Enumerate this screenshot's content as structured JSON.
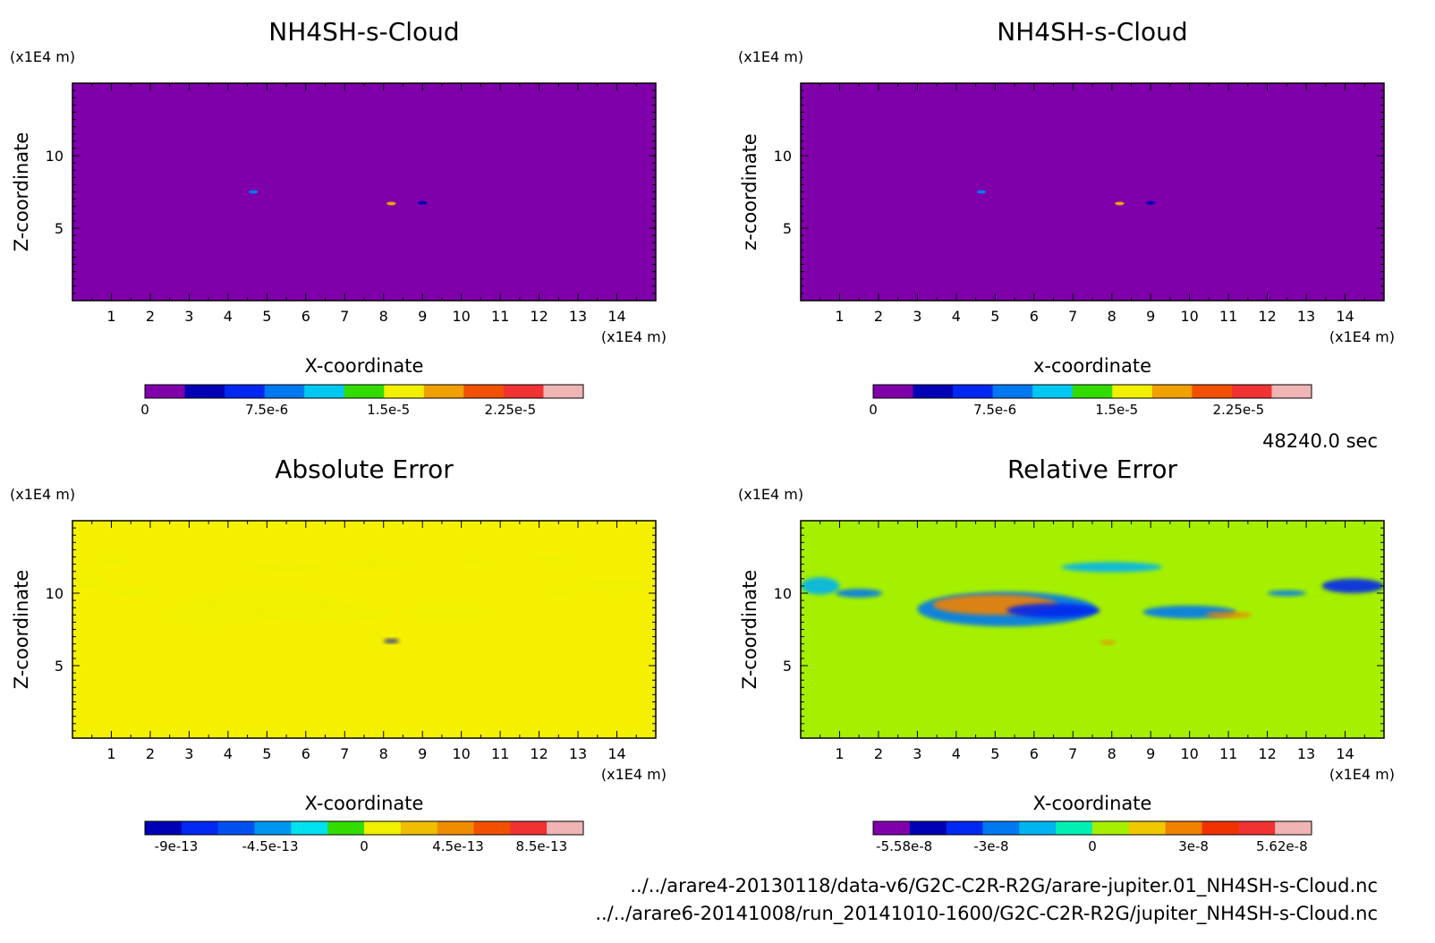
{
  "time_label": "48240.0 sec",
  "file_paths": [
    "../../arare4-20130118/data-v6/G2C-C2R-R2G/arare-jupiter.01_NH4SH-s-Cloud.nc",
    "../../arare6-20141008/run_20141010-1600/G2C-C2R-R2G/jupiter_NH4SH-s-Cloud.nc"
  ],
  "chart_data": [
    {
      "type": "heatmap",
      "title": "NH4SH-s-Cloud",
      "xlabel": "X-coordinate",
      "ylabel": "Z-coordinate",
      "x_unit": "(x1E4 m)",
      "y_unit": "(x1E4 m)",
      "xlim": [
        0,
        15
      ],
      "ylim": [
        0,
        15
      ],
      "x_ticks": [
        1,
        2,
        3,
        4,
        5,
        6,
        7,
        8,
        9,
        10,
        11,
        12,
        13,
        14
      ],
      "y_ticks": [
        5,
        10
      ],
      "background": "#7f00aa",
      "colorbar": {
        "ticks": [
          "0",
          "7.5e-6",
          "1.5e-5",
          "2.25e-5"
        ],
        "tick_values": [
          0,
          7.5e-06,
          1.5e-05,
          2.25e-05
        ],
        "range": [
          0,
          2.7e-05
        ],
        "colors": [
          "#7f00aa",
          "#0000b4",
          "#0028f0",
          "#0078f0",
          "#00c8f0",
          "#32dc00",
          "#f0f000",
          "#f0a000",
          "#f05000",
          "#f03232",
          "#f0b4b4"
        ]
      },
      "features": [
        {
          "x": 4.65,
          "z": 7.5,
          "value": 7.5e-06
        },
        {
          "x": 8.2,
          "z": 6.7,
          "value": 1.8e-05
        },
        {
          "x": 9.0,
          "z": 6.75,
          "value": 3e-06
        }
      ]
    },
    {
      "type": "heatmap",
      "title": "NH4SH-s-Cloud",
      "xlabel": "x-coordinate",
      "ylabel": "z-coordinate",
      "x_unit": "(x1E4 m)",
      "y_unit": "(x1E4 m)",
      "xlim": [
        0,
        15
      ],
      "ylim": [
        0,
        15
      ],
      "x_ticks": [
        1,
        2,
        3,
        4,
        5,
        6,
        7,
        8,
        9,
        10,
        11,
        12,
        13,
        14
      ],
      "y_ticks": [
        5,
        10
      ],
      "background": "#7f00aa",
      "colorbar": {
        "ticks": [
          "0",
          "7.5e-6",
          "1.5e-5",
          "2.25e-5"
        ],
        "tick_values": [
          0,
          7.5e-06,
          1.5e-05,
          2.25e-05
        ],
        "range": [
          0,
          2.7e-05
        ],
        "colors": [
          "#7f00aa",
          "#0000b4",
          "#0028f0",
          "#0078f0",
          "#00c8f0",
          "#32dc00",
          "#f0f000",
          "#f0a000",
          "#f05000",
          "#f03232",
          "#f0b4b4"
        ]
      },
      "features": [
        {
          "x": 4.65,
          "z": 7.5,
          "value": 7.5e-06
        },
        {
          "x": 8.2,
          "z": 6.7,
          "value": 1.8e-05
        },
        {
          "x": 9.0,
          "z": 6.75,
          "value": 3e-06
        }
      ]
    },
    {
      "type": "heatmap",
      "title": "Absolute Error",
      "xlabel": "X-coordinate",
      "ylabel": "Z-coordinate",
      "x_unit": "(x1E4 m)",
      "y_unit": "(x1E4 m)",
      "xlim": [
        0,
        15
      ],
      "ylim": [
        0,
        15
      ],
      "x_ticks": [
        1,
        2,
        3,
        4,
        5,
        6,
        7,
        8,
        9,
        10,
        11,
        12,
        13,
        14
      ],
      "y_ticks": [
        5,
        10
      ],
      "background": "#f5f000",
      "colorbar": {
        "ticks": [
          "-9e-13",
          "-4.5e-13",
          "0",
          "4.5e-13",
          "8.5e-13"
        ],
        "tick_values": [
          -9e-13,
          -4.5e-13,
          0,
          4.5e-13,
          8.5e-13
        ],
        "range": [
          -1.05e-12,
          1.05e-12
        ],
        "colors": [
          "#0000b4",
          "#0028f0",
          "#0050f0",
          "#0096f0",
          "#00e1f0",
          "#32dc00",
          "#f0f000",
          "#f0be00",
          "#f08c00",
          "#f05000",
          "#f03232",
          "#f0b4b4"
        ]
      },
      "features": [
        {
          "x": 1.1,
          "z": 12.2,
          "value": 1e-13,
          "rx": 0.35,
          "rz": 0.25
        },
        {
          "x": 0.4,
          "z": 10.8,
          "value": 1e-13,
          "rx": 0.4,
          "rz": 0.5
        },
        {
          "x": 1.6,
          "z": 10.0,
          "value": 1e-13,
          "rx": 0.6,
          "rz": 0.3
        },
        {
          "x": 3.6,
          "z": 8.4,
          "value": 1e-13,
          "rx": 1.2,
          "rz": 0.6
        },
        {
          "x": 5.0,
          "z": 9.2,
          "value": 1e-13,
          "rx": 2.0,
          "rz": 1.0
        },
        {
          "x": 6.5,
          "z": 8.6,
          "value": 1e-13,
          "rx": 1.8,
          "rz": 0.6
        },
        {
          "x": 5.5,
          "z": 11.8,
          "value": 1e-13,
          "rx": 1.0,
          "rz": 0.3
        },
        {
          "x": 7.8,
          "z": 12.0,
          "value": 1e-13,
          "rx": 1.0,
          "rz": 0.3
        },
        {
          "x": 9.7,
          "z": 8.7,
          "value": 1e-13,
          "rx": 1.0,
          "rz": 0.45
        },
        {
          "x": 10.3,
          "z": 12.2,
          "value": 1e-13,
          "rx": 0.35,
          "rz": 0.2
        },
        {
          "x": 12.3,
          "z": 12.4,
          "value": 1e-13,
          "rx": 0.5,
          "rz": 0.25
        },
        {
          "x": 12.6,
          "z": 10.0,
          "value": 1e-13,
          "rx": 0.5,
          "rz": 0.2
        },
        {
          "x": 14.0,
          "z": 10.5,
          "value": 1e-13,
          "rx": 0.9,
          "rz": 0.45
        },
        {
          "x": 8.2,
          "z": 6.7,
          "value": -9e-13,
          "rx": 0.2,
          "rz": 0.12
        }
      ]
    },
    {
      "type": "heatmap",
      "title": "Relative Error",
      "xlabel": "X-coordinate",
      "ylabel": "Z-coordinate",
      "x_unit": "(x1E4 m)",
      "y_unit": "(x1E4 m)",
      "xlim": [
        0,
        15
      ],
      "ylim": [
        0,
        15
      ],
      "x_ticks": [
        1,
        2,
        3,
        4,
        5,
        6,
        7,
        8,
        9,
        10,
        11,
        12,
        13,
        14
      ],
      "y_ticks": [
        5,
        10
      ],
      "background": "#a5f000",
      "colorbar": {
        "ticks": [
          "-5.58e-8",
          "-3e-8",
          "0",
          "3e-8",
          "5.62e-8"
        ],
        "tick_values": [
          -5.58e-08,
          -3e-08,
          0,
          3e-08,
          5.62e-08
        ],
        "range": [
          -6.5e-08,
          6.5e-08
        ],
        "colors": [
          "#7f00aa",
          "#0000b4",
          "#0028f0",
          "#0078f0",
          "#00b4f0",
          "#00f0b4",
          "#a5f000",
          "#f0c800",
          "#f08200",
          "#f03200",
          "#f03232",
          "#f0b4b4"
        ]
      },
      "features": [
        {
          "x": 0.5,
          "z": 10.5,
          "value": -2e-08,
          "rx": 0.5,
          "rz": 0.6
        },
        {
          "x": 1.5,
          "z": 10.0,
          "value": -3e-08,
          "rx": 0.6,
          "rz": 0.3
        },
        {
          "x": 5.3,
          "z": 8.9,
          "value": -3e-08,
          "rx": 2.3,
          "rz": 1.2
        },
        {
          "x": 5.0,
          "z": 9.2,
          "value": 3e-08,
          "rx": 1.6,
          "rz": 0.7
        },
        {
          "x": 6.5,
          "z": 8.8,
          "value": -4e-08,
          "rx": 1.2,
          "rz": 0.5
        },
        {
          "x": 8.0,
          "z": 11.8,
          "value": -2e-08,
          "rx": 1.3,
          "rz": 0.35
        },
        {
          "x": 10.0,
          "z": 8.7,
          "value": -3e-08,
          "rx": 1.2,
          "rz": 0.45
        },
        {
          "x": 11.0,
          "z": 8.5,
          "value": 3e-08,
          "rx": 0.6,
          "rz": 0.2
        },
        {
          "x": 12.5,
          "z": 10.0,
          "value": -3e-08,
          "rx": 0.5,
          "rz": 0.2
        },
        {
          "x": 14.2,
          "z": 10.5,
          "value": -4e-08,
          "rx": 0.8,
          "rz": 0.5
        },
        {
          "x": 7.9,
          "z": 6.6,
          "value": 3e-08,
          "rx": 0.2,
          "rz": 0.1
        }
      ]
    }
  ]
}
